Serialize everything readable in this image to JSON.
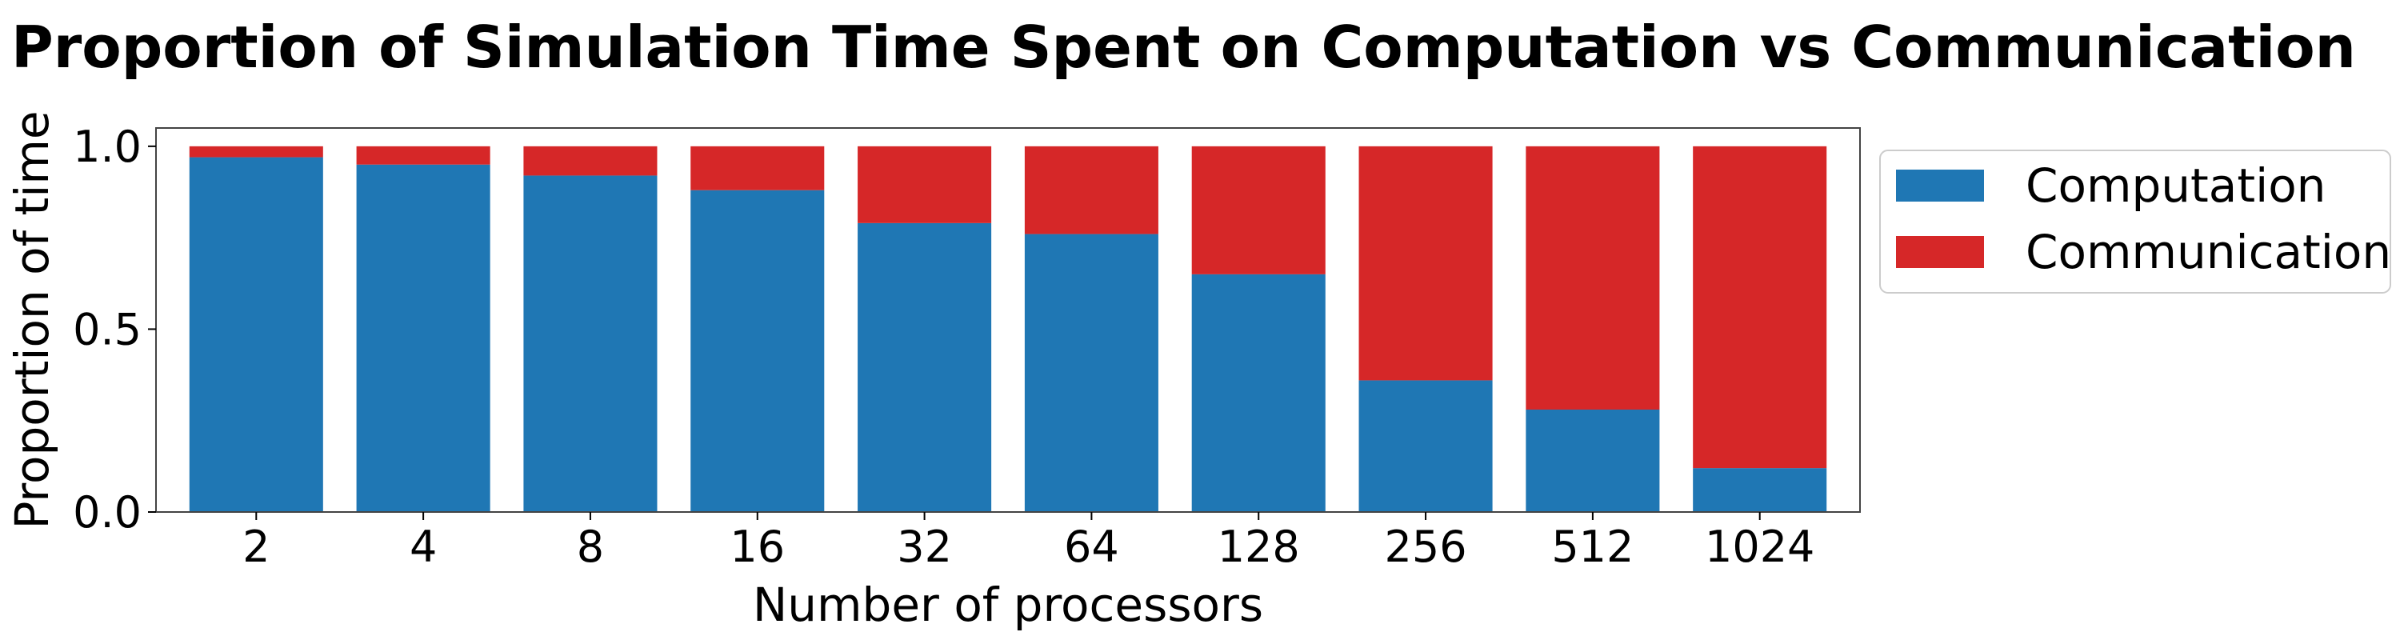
{
  "chart_data": {
    "type": "bar",
    "stacked": true,
    "title": "Proportion of Simulation Time Spent on Computation vs Communication",
    "xlabel": "Number of processors",
    "ylabel": "Proportion of time",
    "categories": [
      "2",
      "4",
      "8",
      "16",
      "32",
      "64",
      "128",
      "256",
      "512",
      "1024"
    ],
    "series": [
      {
        "name": "Computation",
        "color": "#1f77b4",
        "values": [
          0.97,
          0.95,
          0.92,
          0.88,
          0.79,
          0.76,
          0.65,
          0.36,
          0.28,
          0.12
        ]
      },
      {
        "name": "Communication",
        "color": "#d62728",
        "values": [
          0.03,
          0.05,
          0.08,
          0.12,
          0.21,
          0.24,
          0.35,
          0.64,
          0.72,
          0.88
        ]
      }
    ],
    "ylim": [
      0,
      1.05
    ],
    "yticks": [
      0.0,
      0.5,
      1.0
    ],
    "ytick_labels": [
      "0.0",
      "0.5",
      "1.0"
    ],
    "grid": false,
    "legend": "outside-upper-right"
  }
}
